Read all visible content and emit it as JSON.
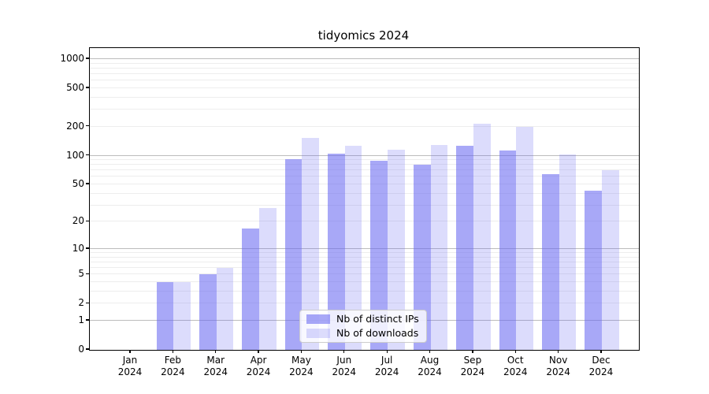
{
  "title": "tidyomics 2024",
  "legend": {
    "items": [
      {
        "label": "Nb of distinct IPs",
        "color": "rgba(102,102,241,0.57)"
      },
      {
        "label": "Nb of downloads",
        "color": "rgba(102,102,241,0.23)"
      }
    ]
  },
  "colors": {
    "bar_base": "#6666f1",
    "grid_major": "#bcbcbc",
    "grid_minor": "#ededed",
    "axis": "#000000"
  },
  "chart_data": {
    "type": "bar",
    "title": "tidyomics 2024",
    "categories": [
      "Jan 2024",
      "Feb 2024",
      "Mar 2024",
      "Apr 2024",
      "May 2024",
      "Jun 2024",
      "Jul 2024",
      "Aug 2024",
      "Sep 2024",
      "Oct 2024",
      "Nov 2024",
      "Dec 2024"
    ],
    "series": [
      {
        "name": "Nb of distinct IPs",
        "values": [
          0,
          4,
          5,
          17,
          92,
          104,
          89,
          80,
          127,
          113,
          64,
          43
        ]
      },
      {
        "name": "Nb of downloads",
        "values": [
          0,
          4,
          6,
          28,
          152,
          126,
          115,
          130,
          215,
          200,
          103,
          70
        ]
      }
    ],
    "yscale": "log1p",
    "yticks": [
      0,
      1,
      2,
      5,
      10,
      20,
      50,
      100,
      200,
      500,
      1000
    ],
    "ytick_labels": [
      "0",
      "1",
      "2",
      "5",
      "10",
      "20",
      "50",
      "100",
      "200",
      "500",
      "1000"
    ],
    "major_grid_values": [
      1,
      10,
      100,
      1000
    ],
    "ylim": [
      0,
      1300
    ],
    "xlabel": "",
    "ylabel": "",
    "grid": true,
    "legend_position": "lower center"
  }
}
